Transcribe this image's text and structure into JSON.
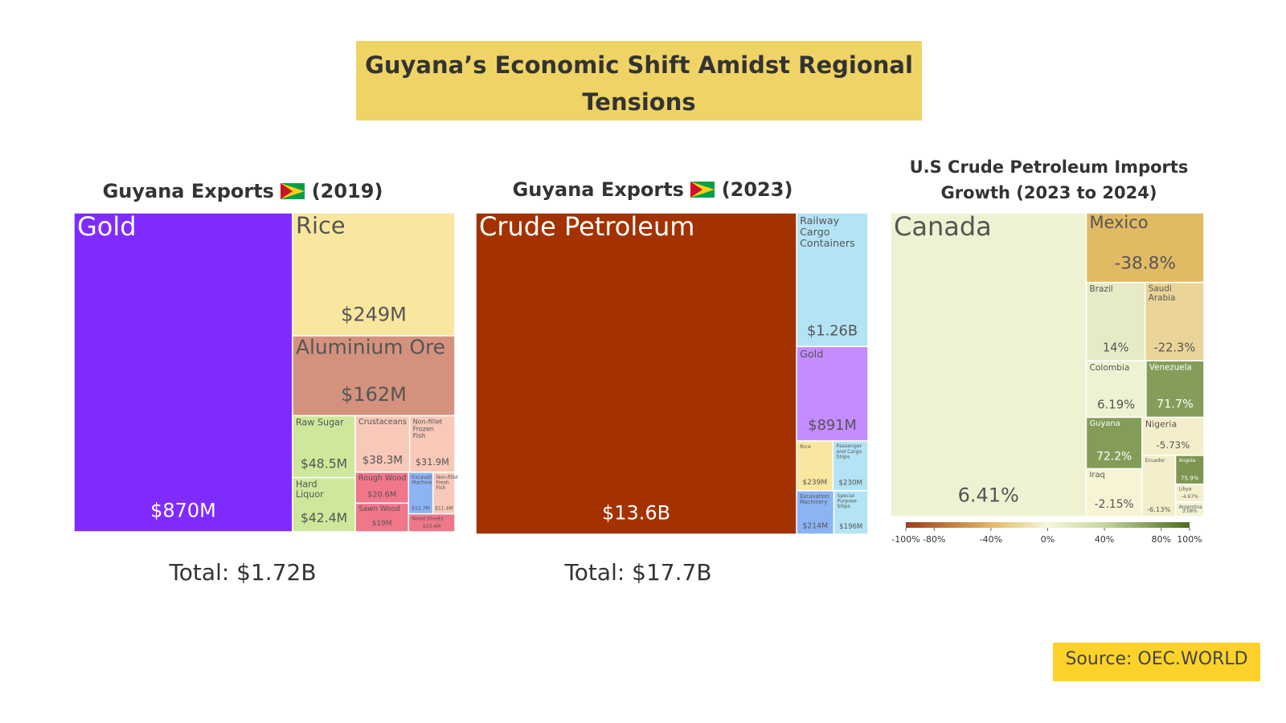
{
  "title": "Guyana’s Economic Shift Amidst Regional Tensions",
  "source": "Source: OEC.WORLD",
  "chart_data": [
    {
      "type": "treemap",
      "title": "Guyana Exports",
      "year": "(2019)",
      "total": "Total: $1.72B",
      "categories": [
        "Gold",
        "Rice",
        "Aluminium Ore",
        "Raw Sugar",
        "Hard Liquor",
        "Crustaceans",
        "Non-fillet Frozen Fish",
        "Rough Wood",
        "Sawn Wood",
        "Excavation Machinery",
        "Non-fillet Fresh Fish",
        "Wood Sheets"
      ],
      "values": [
        870,
        249,
        162,
        48.5,
        42.4,
        38.3,
        31.9,
        20.6,
        19,
        12.7,
        11.4,
        10.4
      ],
      "value_labels": [
        "$870M",
        "$249M",
        "$162M",
        "$48.5M",
        "$42.4M",
        "$38.3M",
        "$31.9M",
        "$20.6M",
        "$19M",
        "$12.7M",
        "$11.4M",
        "$10.4M"
      ],
      "colors": [
        "#7f2bff",
        "#f9e79f",
        "#d4927e",
        "#cde89b",
        "#cde89b",
        "#f8c8b8",
        "#f8c8b8",
        "#f0768a",
        "#f0768a",
        "#8cb4f5",
        "#f8c8b8",
        "#f0768a"
      ]
    },
    {
      "type": "treemap",
      "title": "Guyana Exports",
      "year": "(2023)",
      "total": "Total: $17.7B",
      "categories": [
        "Crude Petroleum",
        "Railway Cargo Containers",
        "Gold",
        "Rice",
        "Passenger and Cargo Ships",
        "Excavation Machinery",
        "Special Purpose Ships"
      ],
      "values": [
        13600,
        1260,
        891,
        239,
        230,
        214,
        196
      ],
      "value_labels": [
        "$13.6B",
        "$1.26B",
        "$891M",
        "$239M",
        "$230M",
        "$214M",
        "$196M"
      ],
      "colors": [
        "#a33200",
        "#b4e3f5",
        "#c58cff",
        "#f9e79f",
        "#b4e3f5",
        "#8cb4f5",
        "#b4e3f5"
      ]
    },
    {
      "type": "treemap",
      "title": "U.S Crude Petroleum Imports Growth (2023 to 2024)",
      "categories": [
        "Canada",
        "Mexico",
        "Brazil",
        "Saudi Arabia",
        "Colombia",
        "Venezuela",
        "Guyana",
        "Iraq",
        "Nigeria",
        "Ecuador",
        "Angola",
        "Libya",
        "Argentina"
      ],
      "sizes": [
        58,
        8,
        4.5,
        4.5,
        3.3,
        3.2,
        2.8,
        2.6,
        2.3,
        2,
        0.8,
        0.5,
        0.4
      ],
      "values": [
        6.41,
        -38.8,
        14,
        -22.3,
        6.19,
        71.7,
        72.2,
        -2.15,
        -5.73,
        -6.13,
        75.9,
        -4.67,
        3.08
      ],
      "value_labels": [
        "6.41%",
        "-38.8%",
        "14%",
        "-22.3%",
        "6.19%",
        "71.7%",
        "72.2%",
        "-2.15%",
        "-5.73%",
        "-6.13%",
        "75.9%",
        "-4.67%",
        "3.08%"
      ],
      "colorscale": [
        [
          -100,
          "#9c3d1e"
        ],
        [
          -40,
          "#e0b860"
        ],
        [
          0,
          "#f7f7dc"
        ],
        [
          40,
          "#c6d69c"
        ],
        [
          100,
          "#4a6b1f"
        ]
      ],
      "colorlim": [
        -100,
        100
      ],
      "colorticks": [
        {
          "value": -100,
          "label": "-100%"
        },
        {
          "value": -80,
          "label": "-80%"
        },
        {
          "value": -40,
          "label": "-40%"
        },
        {
          "value": 0,
          "label": "0%"
        },
        {
          "value": 40,
          "label": "40%"
        },
        {
          "value": 80,
          "label": "80%"
        },
        {
          "value": 100,
          "label": "100%"
        }
      ]
    }
  ]
}
